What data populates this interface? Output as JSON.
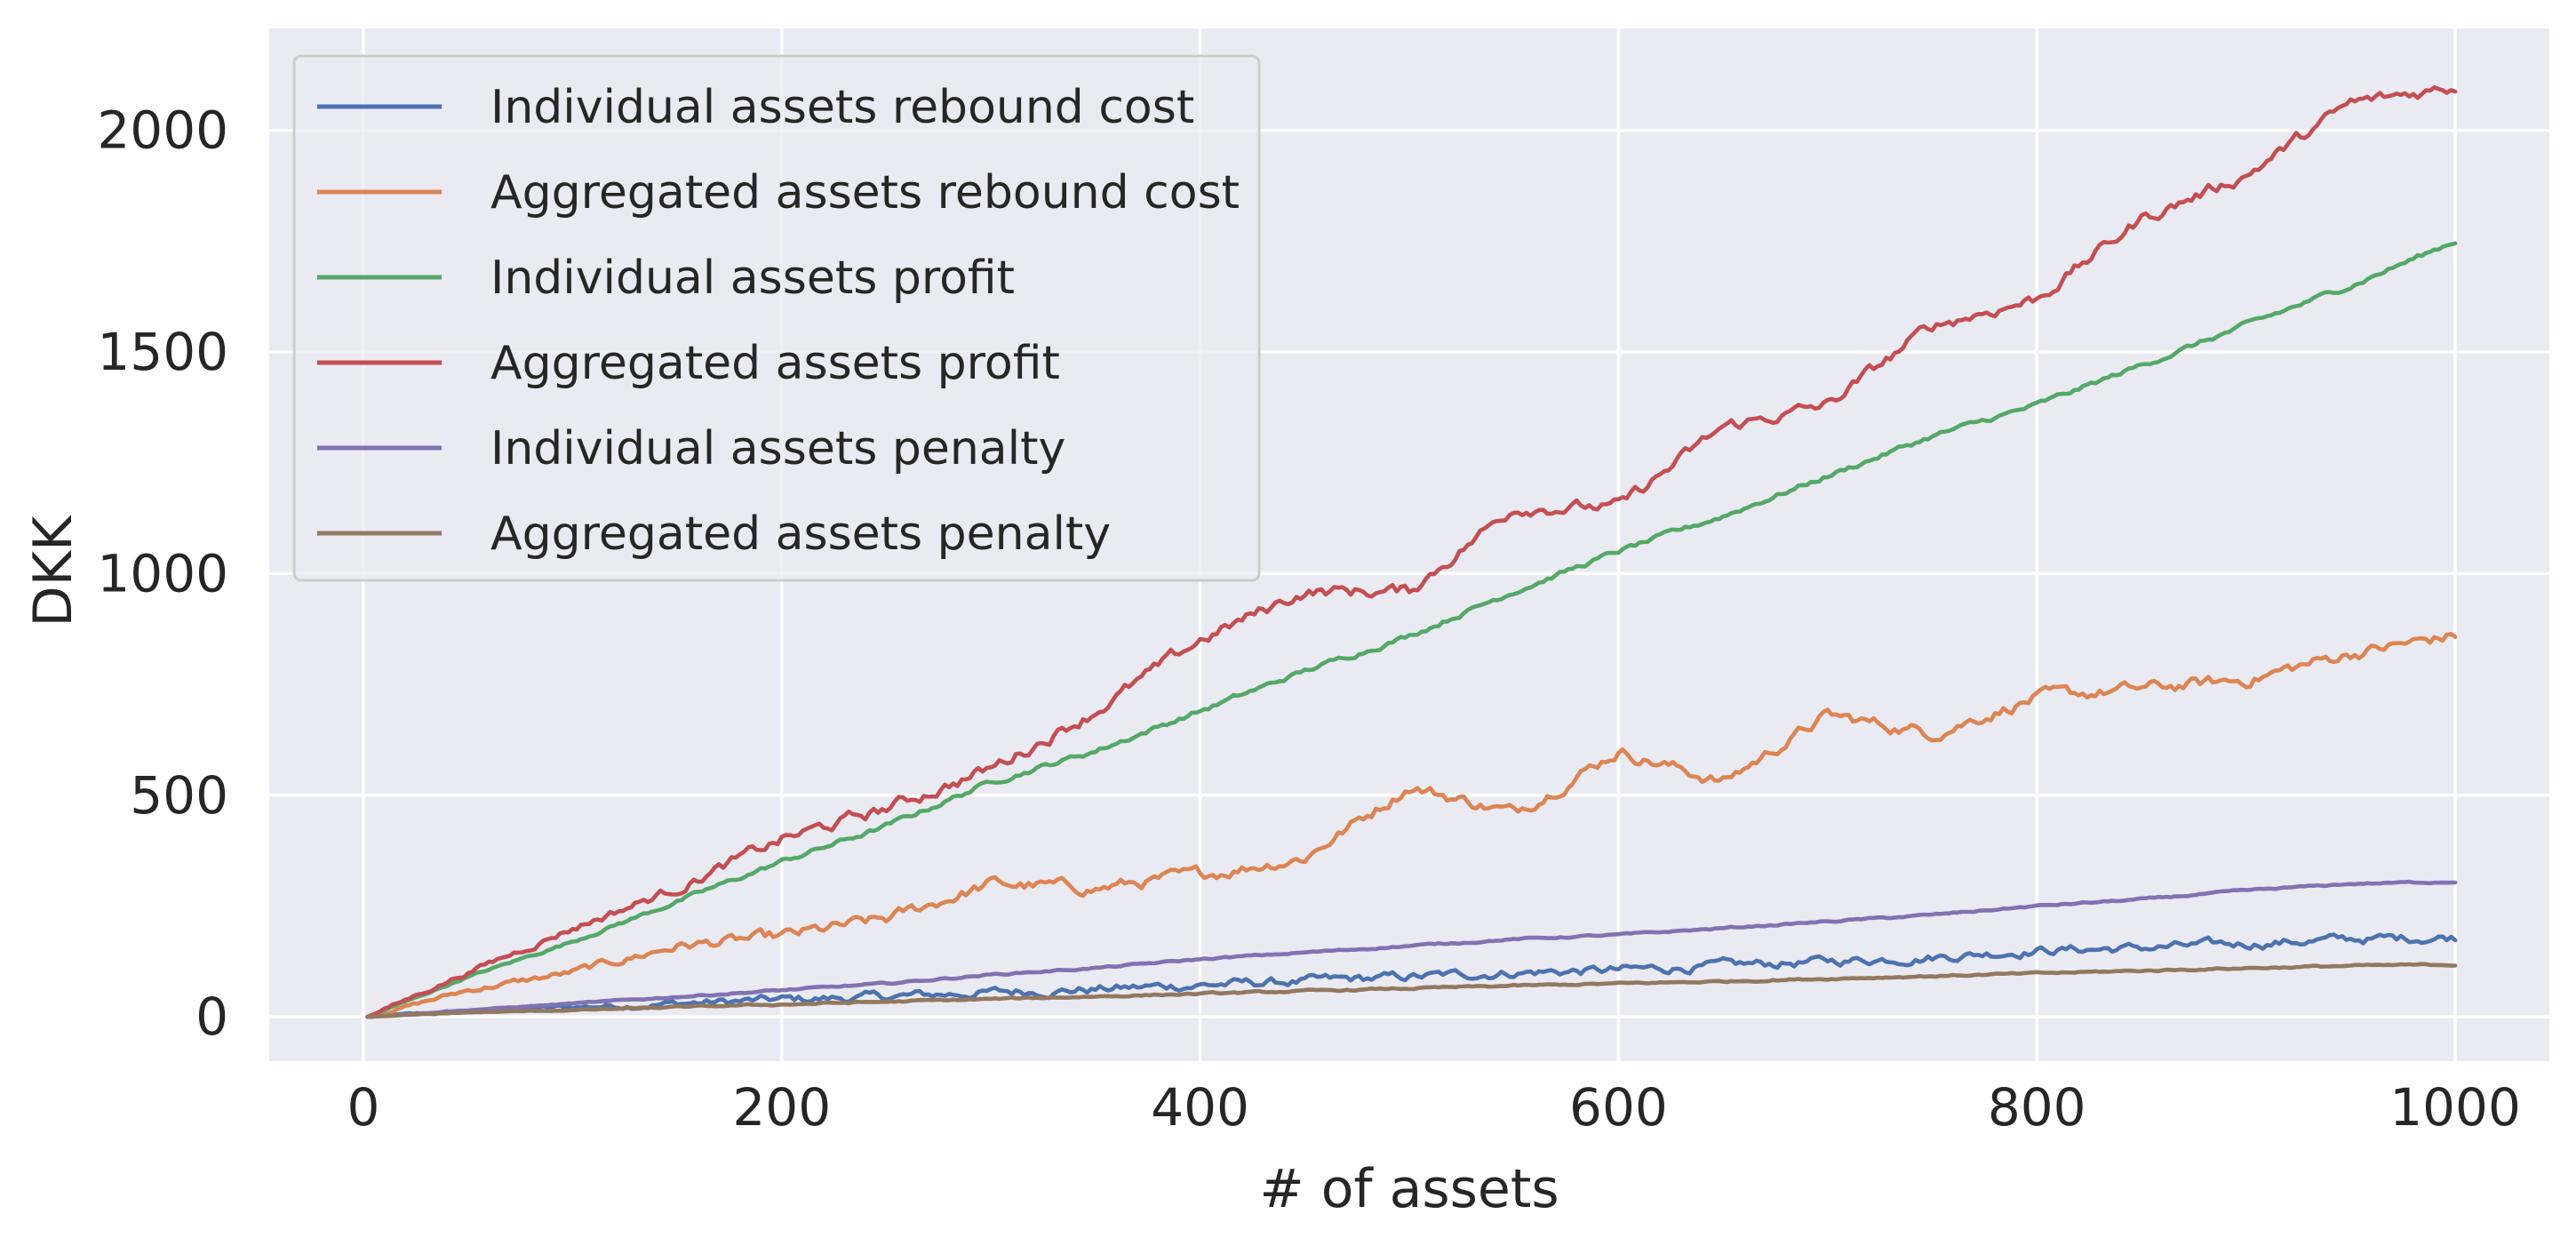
{
  "chart_data": {
    "type": "line",
    "title": "",
    "xlabel": "# of assets",
    "ylabel": "DKK",
    "xlim": [
      -45,
      1045
    ],
    "ylim": [
      -100,
      2230
    ],
    "xticks": [
      0,
      200,
      400,
      600,
      800,
      1000
    ],
    "yticks": [
      0,
      500,
      1000,
      1500,
      2000
    ],
    "xtick_labels": [
      "0",
      "200",
      "400",
      "600",
      "800",
      "1000"
    ],
    "ytick_labels": [
      "0",
      "500",
      "1000",
      "1500",
      "2000"
    ],
    "grid": true,
    "legend_position": "top-left",
    "background_color": "#eaeaf2",
    "x": [
      2,
      50,
      100,
      150,
      200,
      250,
      300,
      350,
      400,
      450,
      500,
      550,
      600,
      650,
      700,
      750,
      800,
      850,
      900,
      950,
      1000
    ],
    "series": [
      {
        "name": "Individual assets rebound cost",
        "color": "#4c72b0",
        "noise": 16,
        "values": [
          0,
          12,
          22,
          30,
          38,
          45,
          55,
          62,
          72,
          80,
          90,
          100,
          105,
          115,
          125,
          135,
          150,
          155,
          165,
          175,
          180
        ]
      },
      {
        "name": "Aggregated assets rebound cost",
        "color": "#dd8452",
        "noise": 22,
        "values": [
          0,
          60,
          100,
          160,
          180,
          220,
          300,
          290,
          320,
          360,
          520,
          460,
          600,
          530,
          680,
          640,
          720,
          740,
          760,
          820,
          860
        ]
      },
      {
        "name": "Individual assets profit",
        "color": "#55a868",
        "noise": 9,
        "values": [
          0,
          90,
          170,
          260,
          350,
          430,
          530,
          600,
          690,
          780,
          860,
          960,
          1050,
          1130,
          1220,
          1310,
          1380,
          1470,
          1560,
          1650,
          1750
        ]
      },
      {
        "name": "Aggregated assets profit",
        "color": "#c44e52",
        "noise": 22,
        "values": [
          0,
          100,
          200,
          290,
          400,
          470,
          560,
          690,
          850,
          960,
          960,
          1150,
          1150,
          1330,
          1380,
          1560,
          1620,
          1800,
          1900,
          2060,
          2100
        ]
      },
      {
        "name": "Individual assets penalty",
        "color": "#8172b3",
        "noise": 3,
        "values": [
          0,
          15,
          30,
          45,
          60,
          75,
          95,
          110,
          130,
          145,
          160,
          175,
          185,
          200,
          215,
          230,
          250,
          265,
          285,
          300,
          305
        ]
      },
      {
        "name": "Aggregated assets penalty",
        "color": "#937860",
        "noise": 3,
        "values": [
          0,
          10,
          15,
          22,
          28,
          34,
          40,
          46,
          52,
          58,
          64,
          70,
          75,
          80,
          86,
          92,
          98,
          104,
          110,
          115,
          118
        ]
      }
    ]
  }
}
